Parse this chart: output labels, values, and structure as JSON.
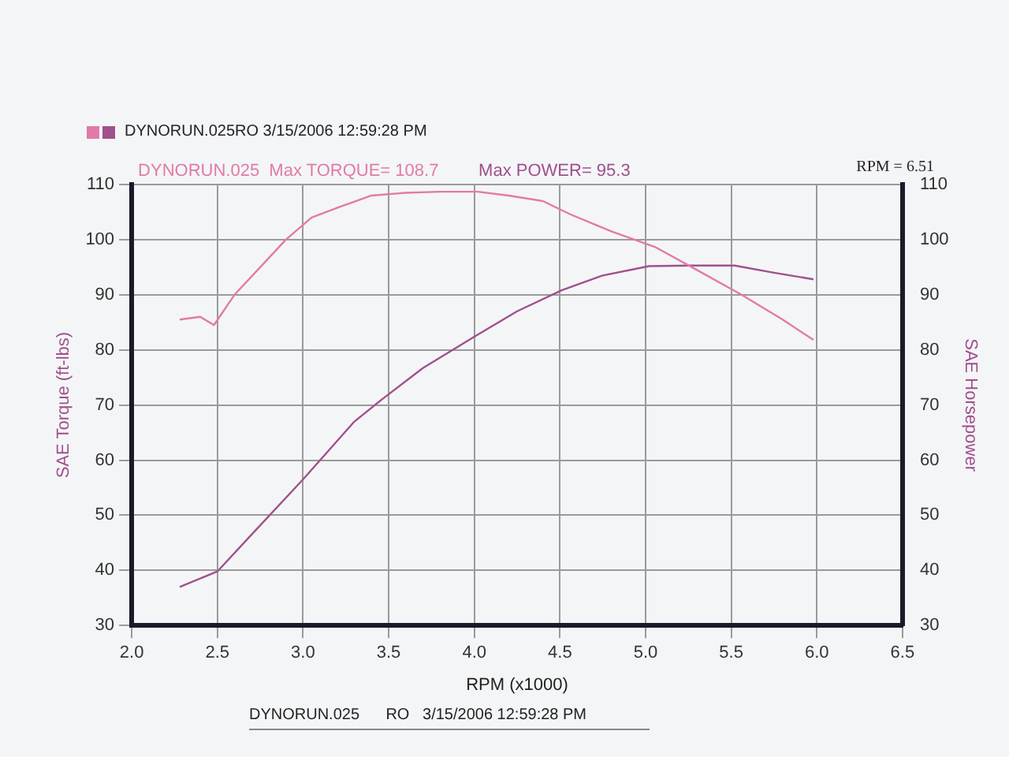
{
  "chart_data": {
    "type": "line",
    "subtitle": "DYNORUN.025RO  3/15/2006 12:59:28 PM",
    "xlabel": "RPM (x1000)",
    "ylabel": "SAE Torque (ft-lbs)",
    "y2label": "SAE Horsepower",
    "xlim": [
      2.0,
      6.5
    ],
    "xticks": [
      {
        "value": 2,
        "label": "2.0"
      },
      2.5,
      {
        "value": 3,
        "label": "3.0"
      },
      3.5,
      {
        "value": 4,
        "label": "4.0"
      },
      4.5,
      {
        "value": 5,
        "label": "5.0"
      },
      5.5,
      {
        "value": 6,
        "label": "6.0"
      },
      6.5
    ],
    "ylim": [
      30,
      110
    ],
    "yticks": [
      30,
      40,
      50,
      60,
      70,
      80,
      90,
      100,
      110
    ],
    "y2lim": [
      30,
      110
    ],
    "y2ticks": [
      30,
      40,
      50,
      60,
      70,
      80,
      90,
      100,
      110
    ],
    "grid": true,
    "legend": false,
    "marker": "none",
    "line_style": "solid",
    "annotations": [
      "DYNORUN.025  Max TORQUE= 108.7",
      "Max POWER= 95.3",
      "RPM = 6.51",
      "DYNORUN.025      RO   3/15/2006 12:59:28 PM"
    ],
    "series": [
      {
        "color": "#e27aa8",
        "x": [
          2.28,
          2.4,
          2.48,
          2.6,
          2.75,
          2.9,
          3.05,
          3.22,
          3.4,
          3.6,
          3.8,
          4.02,
          4.2,
          4.4,
          4.56,
          4.8,
          5.06,
          5.3,
          5.56,
          5.8,
          5.98
        ],
        "values": [
          85.5,
          86,
          84.5,
          90,
          95,
          100,
          104,
          106,
          108,
          108.5,
          108.7,
          108.7,
          108,
          107,
          104.6,
          101.5,
          98.6,
          94.5,
          90,
          85.5,
          81.8
        ]
      },
      {
        "color": "#a0508c",
        "axis": "y2",
        "x": [
          2.28,
          2.5,
          2.7,
          3.0,
          3.3,
          3.46,
          3.7,
          4.0,
          4.25,
          4.51,
          4.75,
          5.02,
          5.26,
          5.52,
          5.75,
          5.98
        ],
        "values": [
          37,
          39.8,
          46.5,
          56.5,
          67,
          71,
          76.7,
          82.4,
          87,
          90.8,
          93.5,
          95.2,
          95.3,
          95.3,
          94,
          92.8
        ]
      }
    ]
  }
}
